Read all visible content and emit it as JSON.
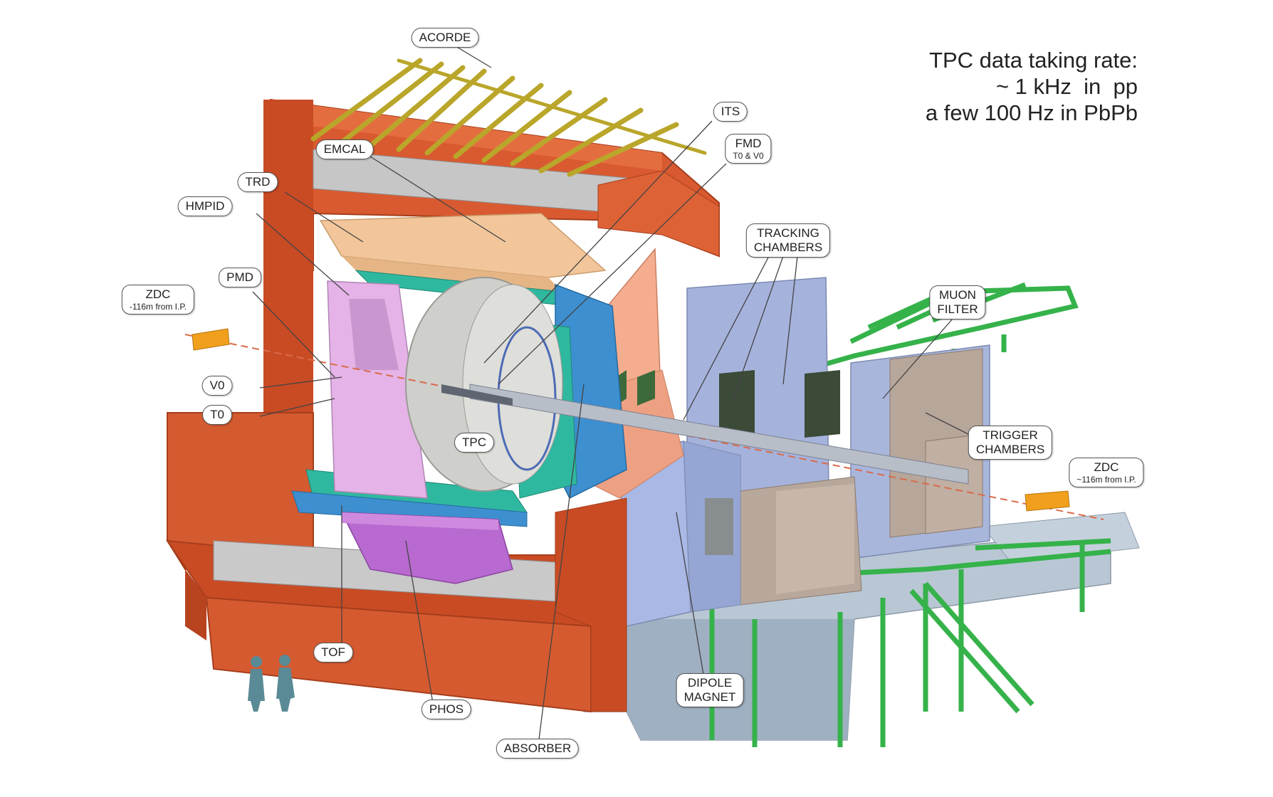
{
  "info": {
    "line1": "TPC data taking rate:",
    "line2": "~ 1 kHz  in  pp",
    "line3": "a few 100 Hz in PbPb"
  },
  "labels": {
    "acorde": "ACORDE",
    "its": "ITS",
    "fmd_1": "FMD",
    "fmd_2": "T0 & V0",
    "emcal": "EMCAL",
    "trd": "TRD",
    "hmpid": "HMPID",
    "pmd": "PMD",
    "zdc_left": "ZDC",
    "zdc_left_sub": "-116m from I.P.",
    "v0": "V0",
    "t0": "T0",
    "tpc": "TPC",
    "tracking_1": "TRACKING",
    "tracking_2": "CHAMBERS",
    "muon_1": "MUON",
    "muon_2": "FILTER",
    "trigger_1": "TRIGGER",
    "trigger_2": "CHAMBERS",
    "zdc_right": "ZDC",
    "zdc_right_sub": "~116m from I.P.",
    "tof": "TOF",
    "phos": "PHOS",
    "absorber": "ABSORBER",
    "dipole_1": "DIPOLE",
    "dipole_2": "MAGNET"
  },
  "colors": {
    "magnet": "#d6552f",
    "magnet_dark": "#b8401f",
    "acorde": "#b9a62a",
    "emcal": "#f1c79a",
    "trd": "#2fb8a0",
    "tof": "#3a8fc8",
    "phos": "#b86ad0",
    "pmd": "#e4b3e6",
    "tpc": "#c8c8c4",
    "absorber": "#f3a98c",
    "muon_green": "#35b24a",
    "chamber_blue": "#a8b8e0",
    "concrete": "#b8c6d4",
    "zdc": "#f0a01c",
    "beam": "#d96b4a",
    "person": "#5a8a96"
  }
}
